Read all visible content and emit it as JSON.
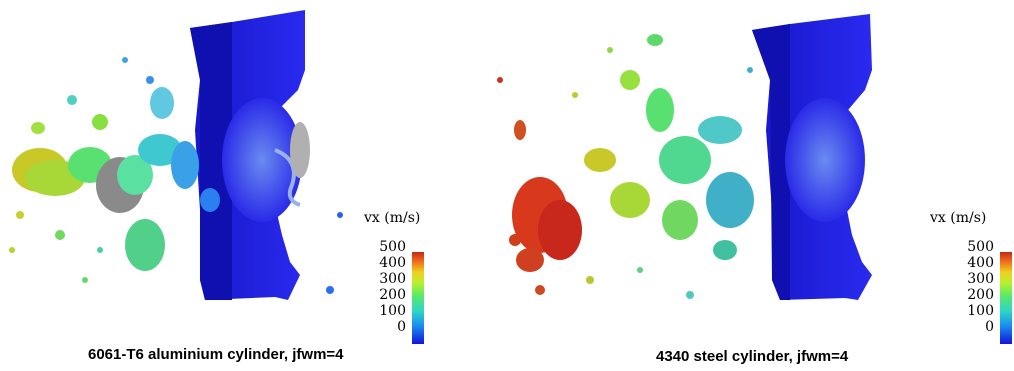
{
  "panels": [
    {
      "caption": "6061-T6 aluminium cylinder, jfwm=4",
      "colorbar": {
        "title": "vx (m/s)",
        "ticks": [
          "500",
          "400",
          "300",
          "200",
          "100",
          "0"
        ]
      }
    },
    {
      "caption": "4340 steel cylinder, jfwm=4",
      "colorbar": {
        "title": "vx (m/s)",
        "ticks": [
          "500",
          "400",
          "300",
          "200",
          "100",
          "0"
        ]
      }
    }
  ],
  "colors": {
    "plate": "#1f1fe0",
    "plate_dark": "#0f0fa8",
    "high": "#c8281c",
    "low": "#1414d8"
  }
}
